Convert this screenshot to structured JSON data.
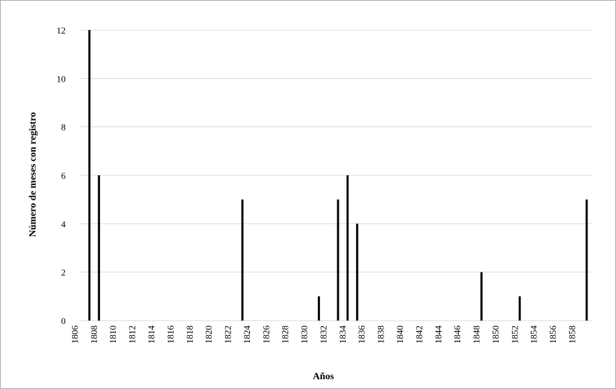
{
  "chart_data": {
    "type": "bar",
    "xlabel": "Años",
    "ylabel": "Número de meses con registro",
    "xlim": [
      1806,
      1859
    ],
    "ylim": [
      0,
      12
    ],
    "y_ticks": [
      0,
      2,
      4,
      6,
      8,
      10,
      12
    ],
    "x_ticks": [
      1806,
      1808,
      1810,
      1812,
      1814,
      1816,
      1818,
      1820,
      1822,
      1824,
      1826,
      1828,
      1830,
      1832,
      1834,
      1836,
      1838,
      1840,
      1842,
      1844,
      1846,
      1848,
      1850,
      1852,
      1854,
      1856,
      1858
    ],
    "grid": true,
    "bar_color": "#000000",
    "gridline_color": "#d9d9d9",
    "points": [
      {
        "year": 1807,
        "value": 12
      },
      {
        "year": 1808,
        "value": 6
      },
      {
        "year": 1823,
        "value": 5
      },
      {
        "year": 1831,
        "value": 1
      },
      {
        "year": 1833,
        "value": 5
      },
      {
        "year": 1834,
        "value": 6
      },
      {
        "year": 1835,
        "value": 4
      },
      {
        "year": 1848,
        "value": 2
      },
      {
        "year": 1852,
        "value": 1
      },
      {
        "year": 1859,
        "value": 5
      }
    ]
  }
}
